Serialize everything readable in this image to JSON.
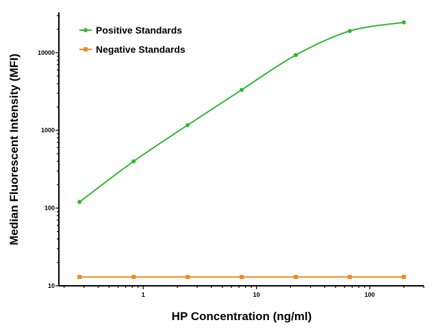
{
  "chart_data": {
    "type": "line",
    "title": "",
    "xlabel": "HP Concentration (ng/ml)",
    "ylabel": "Median Fluorescent Intensity (MFI)",
    "xscale": "log",
    "yscale": "log",
    "xlim": [
      0.18,
      300
    ],
    "ylim": [
      10,
      33000
    ],
    "x_ticks": [
      {
        "value": 1,
        "label": "1"
      },
      {
        "value": 10,
        "label": "10"
      },
      {
        "value": 100,
        "label": "100"
      }
    ],
    "y_ticks": [
      {
        "value": 10,
        "label": "10"
      },
      {
        "value": 100,
        "label": "100"
      },
      {
        "value": 1000,
        "label": "1000"
      },
      {
        "value": 10000,
        "label": "10000"
      }
    ],
    "grid": false,
    "legend_position": "top-left",
    "x": [
      0.274,
      0.823,
      2.47,
      7.41,
      22.2,
      66.7,
      200
    ],
    "series": [
      {
        "name": "Positive Standards",
        "color": "#2db82d",
        "marker": "circle",
        "values": [
          120,
          400,
          1170,
          3330,
          9300,
          19000,
          24500
        ]
      },
      {
        "name": "Negative Standards",
        "color": "#f08a1e",
        "marker": "square",
        "values": [
          13,
          13,
          13,
          13,
          13,
          13,
          13
        ]
      }
    ]
  }
}
